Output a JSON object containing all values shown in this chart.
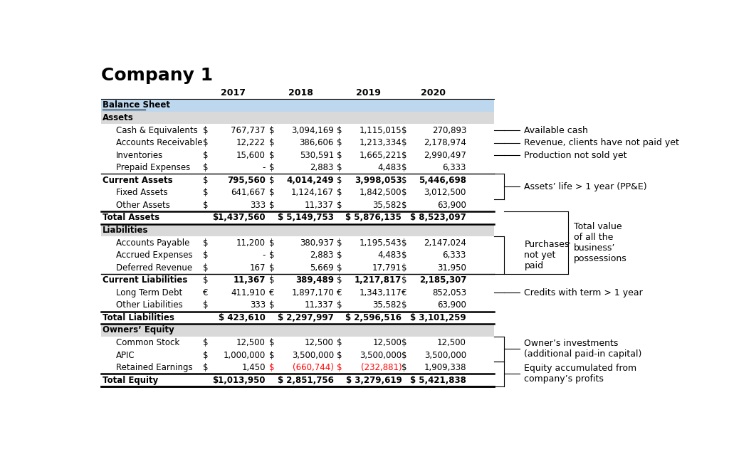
{
  "title": "Company 1",
  "years": [
    "2017",
    "2018",
    "2019",
    "2020"
  ],
  "header_bg": "#BDD7EE",
  "section_bg": "#D9D9D9",
  "white_bg": "#FFFFFF",
  "rows": [
    {
      "label": "Balance Sheet",
      "type": "header",
      "values": [
        "",
        "",
        "",
        ""
      ],
      "symbols": [
        "",
        "",
        "",
        ""
      ],
      "bold": true,
      "underline": true,
      "bg": "header"
    },
    {
      "label": "Assets",
      "type": "section",
      "values": [
        "",
        "",
        "",
        ""
      ],
      "symbols": [
        "",
        "",
        "",
        ""
      ],
      "bold": true,
      "bg": "section"
    },
    {
      "label": "Cash & Equivalents",
      "type": "data",
      "values": [
        "767,737",
        "3,094,169",
        "1,115,015",
        "270,893"
      ],
      "symbols": [
        "$",
        "$",
        "$",
        "$"
      ],
      "bold": false,
      "bg": "white"
    },
    {
      "label": "Accounts Receivable",
      "type": "data",
      "values": [
        "12,222",
        "386,606",
        "1,213,334",
        "2,178,974"
      ],
      "symbols": [
        "$",
        "$",
        "$",
        "$"
      ],
      "bold": false,
      "bg": "white"
    },
    {
      "label": "Inventories",
      "type": "data",
      "values": [
        "15,600",
        "530,591",
        "1,665,221",
        "2,990,497"
      ],
      "symbols": [
        "$",
        "$",
        "$",
        "$"
      ],
      "bold": false,
      "bg": "white"
    },
    {
      "label": "Prepaid Expenses",
      "type": "data",
      "values": [
        "-",
        "2,883",
        "4,483",
        "6,333"
      ],
      "symbols": [
        "$",
        "$",
        "$",
        "$"
      ],
      "bold": false,
      "bg": "white"
    },
    {
      "label": "Current Assets",
      "type": "subtotal",
      "values": [
        "795,560",
        "4,014,249",
        "3,998,053",
        "5,446,698"
      ],
      "symbols": [
        "$",
        "$",
        "$",
        "$"
      ],
      "bold": true,
      "bg": "white"
    },
    {
      "label": "Fixed Assets",
      "type": "data",
      "values": [
        "641,667",
        "1,124,167",
        "1,842,500",
        "3,012,500"
      ],
      "symbols": [
        "$",
        "$",
        "$",
        "$"
      ],
      "bold": false,
      "bg": "white"
    },
    {
      "label": "Other Assets",
      "type": "data",
      "values": [
        "333",
        "11,337",
        "35,582",
        "63,900"
      ],
      "symbols": [
        "$",
        "$",
        "$",
        "$"
      ],
      "bold": false,
      "bg": "white"
    },
    {
      "label": "Total Assets",
      "type": "total",
      "values": [
        "$1,437,560",
        "$ 5,149,753",
        "$ 5,876,135",
        "$ 8,523,097"
      ],
      "symbols": [
        "",
        "",
        "",
        ""
      ],
      "bold": true,
      "bg": "white"
    },
    {
      "label": "Liabilities",
      "type": "section",
      "values": [
        "",
        "",
        "",
        ""
      ],
      "symbols": [
        "",
        "",
        "",
        ""
      ],
      "bold": true,
      "bg": "section"
    },
    {
      "label": "Accounts Payable",
      "type": "data",
      "values": [
        "11,200",
        "380,937",
        "1,195,543",
        "2,147,024"
      ],
      "symbols": [
        "$",
        "$",
        "$",
        "$"
      ],
      "bold": false,
      "bg": "white"
    },
    {
      "label": "Accrued Expenses",
      "type": "data",
      "values": [
        "-",
        "2,883",
        "4,483",
        "6,333"
      ],
      "symbols": [
        "$",
        "$",
        "$",
        "$"
      ],
      "bold": false,
      "bg": "white"
    },
    {
      "label": "Deferred Revenue",
      "type": "data",
      "values": [
        "167",
        "5,669",
        "17,791",
        "31,950"
      ],
      "symbols": [
        "$",
        "$",
        "$",
        "$"
      ],
      "bold": false,
      "bg": "white"
    },
    {
      "label": "Current Liabilities",
      "type": "subtotal",
      "values": [
        "11,367",
        "389,489",
        "1,217,817",
        "2,185,307"
      ],
      "symbols": [
        "$",
        "$",
        "$",
        "$"
      ],
      "bold": true,
      "bg": "white"
    },
    {
      "label": "Long Term Debt",
      "type": "data",
      "values": [
        "411,910",
        "1,897,170",
        "1,343,117",
        "852,053"
      ],
      "symbols": [
        "€",
        "€",
        "€",
        "€"
      ],
      "bold": false,
      "bg": "white"
    },
    {
      "label": "Other Liabilities",
      "type": "data",
      "values": [
        "333",
        "11,337",
        "35,582",
        "63,900"
      ],
      "symbols": [
        "$",
        "$",
        "$",
        "$"
      ],
      "bold": false,
      "bg": "white"
    },
    {
      "label": "Total Liabilities",
      "type": "total",
      "values": [
        "$ 423,610",
        "$ 2,297,997",
        "$ 2,596,516",
        "$ 3,101,259"
      ],
      "symbols": [
        "",
        "",
        "",
        ""
      ],
      "bold": true,
      "bg": "white"
    },
    {
      "label": "Owners’ Equity",
      "type": "section",
      "values": [
        "",
        "",
        "",
        ""
      ],
      "symbols": [
        "",
        "",
        "",
        ""
      ],
      "bold": true,
      "bg": "section"
    },
    {
      "label": "Common Stock",
      "type": "data",
      "values": [
        "12,500",
        "12,500",
        "12,500",
        "12,500"
      ],
      "symbols": [
        "$",
        "$",
        "$",
        "$"
      ],
      "bold": false,
      "bg": "white"
    },
    {
      "label": "APIC",
      "type": "data",
      "values": [
        "1,000,000",
        "3,500,000",
        "3,500,000",
        "3,500,000"
      ],
      "symbols": [
        "$",
        "$",
        "$",
        "$"
      ],
      "bold": false,
      "bg": "white"
    },
    {
      "label": "Retained Earnings",
      "type": "data",
      "values": [
        "1,450",
        "(660,744)",
        "(232,881)",
        "1,909,338"
      ],
      "symbols": [
        "$",
        "$",
        "$",
        "$"
      ],
      "bold": false,
      "bg": "white",
      "red_cols": [
        1,
        2
      ]
    },
    {
      "label": "Total Equity",
      "type": "total",
      "values": [
        "$1,013,950",
        "$ 2,851,756",
        "$ 3,279,619",
        "$ 5,421,838"
      ],
      "symbols": [
        "",
        "",
        "",
        ""
      ],
      "bold": true,
      "bg": "white"
    }
  ]
}
